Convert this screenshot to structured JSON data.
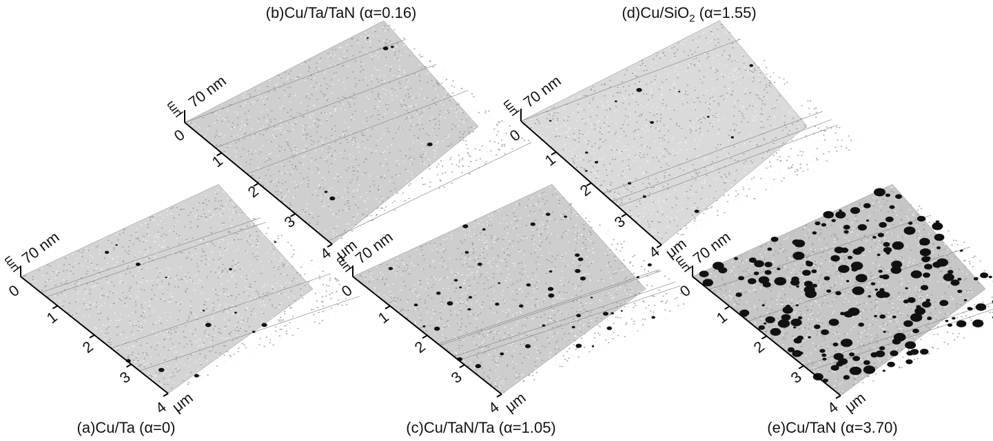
{
  "figure": {
    "panels": [
      {
        "id": "a",
        "caption_prefix": "(a)Cu/Ta (",
        "alpha_symbol": "α",
        "alpha_value": "=0)",
        "z_scale_label": "70 nm",
        "z_zero_label": "0",
        "axis_unit": "μm",
        "axis_unit_mirror": "μm",
        "tick_labels": [
          "1",
          "2",
          "3",
          "4"
        ],
        "particle_density": "low",
        "alpha": 0
      },
      {
        "id": "b",
        "caption_prefix": "(b)Cu/Ta/TaN (",
        "alpha_symbol": "α",
        "alpha_value": "=0.16)",
        "z_scale_label": "70 nm",
        "z_zero_label": "0",
        "axis_unit": "μm",
        "axis_unit_mirror": "μm",
        "tick_labels": [
          "1",
          "2",
          "3",
          "4"
        ],
        "particle_density": "very-low",
        "alpha": 0.16
      },
      {
        "id": "c",
        "caption_prefix": "(c)Cu/TaN/Ta (",
        "alpha_symbol": "α",
        "alpha_value": "=1.05)",
        "z_scale_label": "70 nm",
        "z_zero_label": "0",
        "axis_unit": "μm",
        "axis_unit_mirror": "μm",
        "tick_labels": [
          "1",
          "2",
          "3",
          "4"
        ],
        "particle_density": "medium",
        "alpha": 1.05
      },
      {
        "id": "d",
        "caption_prefix": "(d)Cu/SiO",
        "caption_sub": "2",
        "alpha_symbol": "α",
        "alpha_value": "=1.55)",
        "caption_mid": " (",
        "z_scale_label": "70 nm",
        "z_zero_label": "0",
        "axis_unit": "μm",
        "axis_unit_mirror": "μm",
        "tick_labels": [
          "1",
          "2",
          "3",
          "4"
        ],
        "particle_density": "low",
        "alpha": 1.55
      },
      {
        "id": "e",
        "caption_prefix": "(e)Cu/TaN (",
        "alpha_symbol": "α",
        "alpha_value": "=3.70)",
        "z_scale_label": "70 nm",
        "z_zero_label": "0",
        "axis_unit": "μm",
        "axis_unit_mirror": "μm",
        "tick_labels": [
          "1",
          "2",
          "3",
          "4"
        ],
        "particle_density": "high",
        "alpha": 3.7
      }
    ],
    "colors": {
      "surface_light": "#d9d9d9",
      "surface_mid": "#a8a8a8",
      "particle": "#111111",
      "axis": "#000000"
    }
  }
}
